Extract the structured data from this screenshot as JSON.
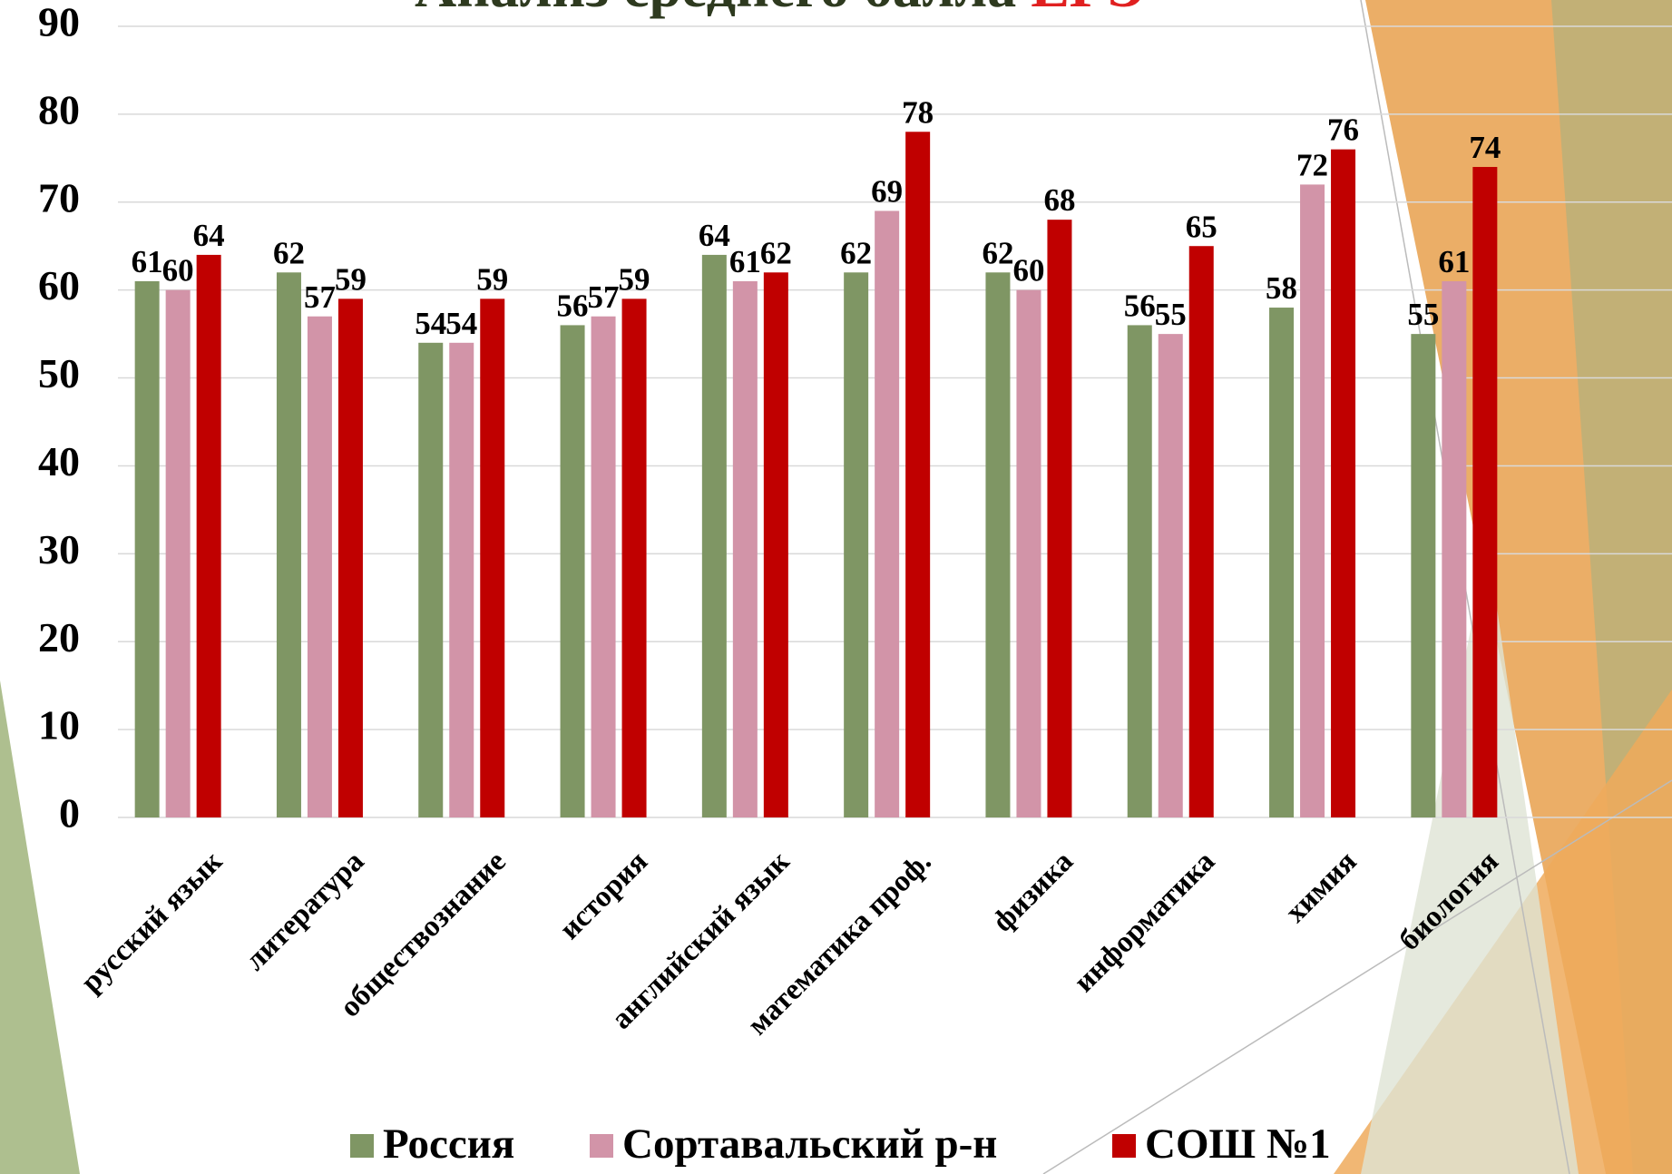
{
  "chart_data": {
    "type": "bar",
    "title": "Анализ среднего балла",
    "title_highlight": "ЕГЭ",
    "categories": [
      "русский язык",
      "литература",
      "обществознание",
      "история",
      "английский язык",
      "математика проф.",
      "физика",
      "информатика",
      "химия",
      "биология"
    ],
    "series": [
      {
        "name": "Россия",
        "color": "#7f9664",
        "values": [
          61,
          62,
          54,
          56,
          64,
          62,
          62,
          56,
          58,
          55
        ]
      },
      {
        "name": "Сортавальский р-н",
        "color": "#d294a8",
        "values": [
          60,
          57,
          54,
          57,
          61,
          69,
          60,
          55,
          72,
          61
        ]
      },
      {
        "name": "СОШ №1",
        "color": "#c00000",
        "values": [
          64,
          59,
          59,
          59,
          62,
          78,
          68,
          65,
          76,
          74
        ]
      }
    ],
    "ylim": [
      0,
      90
    ],
    "yticks": [
      0,
      10,
      20,
      30,
      40,
      50,
      60,
      70,
      80,
      90
    ],
    "grid": true,
    "legend": "bottom"
  }
}
